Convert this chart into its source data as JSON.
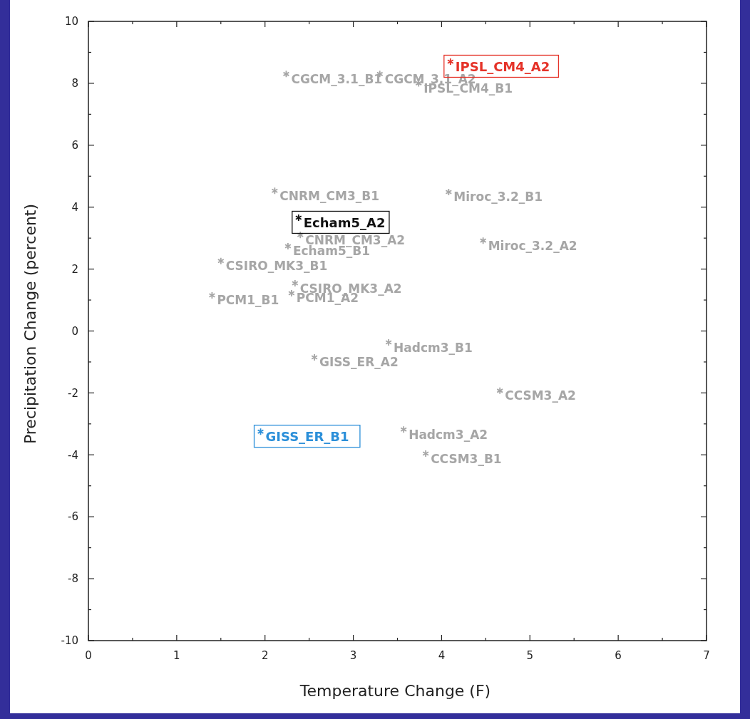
{
  "chart_data": {
    "type": "scatter",
    "xlabel": "Temperature Change (F)",
    "ylabel": "Precipitation Change (percent)",
    "xlim": [
      0,
      7
    ],
    "xticks": [
      0,
      1,
      2,
      3,
      4,
      5,
      6,
      7
    ],
    "ylim": [
      -10,
      10
    ],
    "yticks": [
      -10,
      -8,
      -6,
      -4,
      -2,
      0,
      2,
      4,
      6,
      8,
      10
    ],
    "grid": false,
    "marker": "cross",
    "series": [
      {
        "color": "#a6a6a6",
        "x": [
          2.24,
          3.3,
          3.74,
          4.1,
          2.11,
          4.08,
          2.38,
          2.4,
          2.26,
          4.47,
          1.5,
          2.34,
          1.4,
          2.3,
          3.4,
          2.56,
          4.66,
          1.95,
          3.57,
          3.82
        ],
        "values": [
          8.3,
          8.3,
          8.0,
          8.7,
          4.53,
          4.49,
          3.66,
          3.1,
          2.74,
          2.92,
          2.26,
          1.54,
          1.15,
          1.22,
          -0.37,
          -0.85,
          -1.93,
          -3.25,
          -3.18,
          -3.96
        ],
        "colors": [
          "#a6a6a6",
          "#a6a6a6",
          "#a6a6a6",
          "#e53228",
          "#a6a6a6",
          "#a6a6a6",
          "#111111",
          "#a6a6a6",
          "#a6a6a6",
          "#a6a6a6",
          "#a6a6a6",
          "#a6a6a6",
          "#a6a6a6",
          "#a6a6a6",
          "#a6a6a6",
          "#a6a6a6",
          "#a6a6a6",
          "#2b8fd9",
          "#a6a6a6",
          "#a6a6a6"
        ]
      }
    ],
    "annotations": [
      {
        "text": "CGCM_3.1_B1",
        "x": 2.24,
        "y": 8.3
      },
      {
        "text": "CGCM_3.1_A2",
        "x": 3.3,
        "y": 8.3
      },
      {
        "text": "IPSL_CM4_B1",
        "x": 3.74,
        "y": 8.0
      },
      {
        "text": "IPSL_CM4_A2",
        "x": 4.1,
        "y": 8.7
      },
      {
        "text": "CNRM_CM3_B1",
        "x": 2.11,
        "y": 4.53
      },
      {
        "text": "Miroc_3.2_B1",
        "x": 4.08,
        "y": 4.49
      },
      {
        "text": "Echam5_A2",
        "x": 2.38,
        "y": 3.66
      },
      {
        "text": "CNRM_CM3_A2",
        "x": 2.4,
        "y": 3.1
      },
      {
        "text": "Echam5_B1",
        "x": 2.26,
        "y": 2.74
      },
      {
        "text": "Miroc_3.2_A2",
        "x": 4.47,
        "y": 2.92
      },
      {
        "text": "CSIRO_MK3_B1",
        "x": 1.5,
        "y": 2.26
      },
      {
        "text": "CSIRO_MK3_A2",
        "x": 2.34,
        "y": 1.54
      },
      {
        "text": "PCM1_B1",
        "x": 1.4,
        "y": 1.15
      },
      {
        "text": "PCM1_A2",
        "x": 2.3,
        "y": 1.22
      },
      {
        "text": "Hadcm3_B1",
        "x": 3.4,
        "y": -0.37
      },
      {
        "text": "GISS_ER_A2",
        "x": 2.56,
        "y": -0.85
      },
      {
        "text": "CCSM3_A2",
        "x": 4.66,
        "y": -1.93
      },
      {
        "text": "GISS_ER_B1",
        "x": 1.95,
        "y": -3.25
      },
      {
        "text": "Hadcm3_A2",
        "x": 3.57,
        "y": -3.18
      },
      {
        "text": "CCSM3_B1",
        "x": 3.82,
        "y": -3.96
      }
    ]
  }
}
